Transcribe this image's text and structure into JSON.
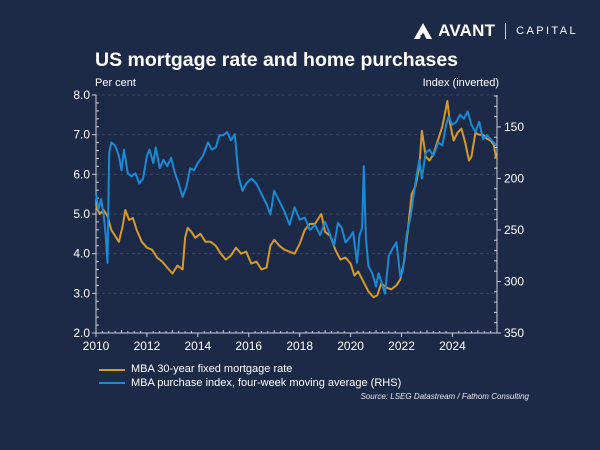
{
  "brand": {
    "name": "AVANT",
    "subtitle": "CAPITAL",
    "logo_icon": "avant-mountain-icon"
  },
  "header": {
    "title": "US mortgage rate and home purchases",
    "left_axis_label": "Per cent",
    "right_axis_label": "Index (inverted)"
  },
  "source": "Source: LSEG Datastream / Fathom Consulting",
  "colors": {
    "background": "#1d2a47",
    "mortgage": "#d69a2d",
    "purchase": "#1a8ad4",
    "grid": "#3a4866",
    "axis": "#c9cfdb"
  },
  "chart_data": {
    "type": "line",
    "title": "US mortgage rate and home purchases",
    "xlabel": "",
    "ylabel": "Per cent",
    "y2label": "Index (inverted)",
    "xlim": [
      2010,
      2025.75
    ],
    "ylim": [
      2.0,
      8.0
    ],
    "y2lim": [
      350,
      119
    ],
    "y2_inverted": true,
    "x_ticks": [
      2010,
      2012,
      2014,
      2016,
      2018,
      2020,
      2022,
      2024
    ],
    "x_tick_labels": [
      "2010",
      "2012",
      "2014",
      "2016",
      "2018",
      "2020",
      "2022",
      "2024"
    ],
    "y_ticks": [
      2.0,
      3.0,
      4.0,
      5.0,
      6.0,
      7.0,
      8.0
    ],
    "y_tick_labels": [
      "2.0",
      "3.0",
      "4.0",
      "5.0",
      "6.0",
      "7.0",
      "8.0"
    ],
    "y2_ticks": [
      150,
      200,
      250,
      300,
      350
    ],
    "y2_tick_labels": [
      "150",
      "200",
      "250",
      "300",
      "350"
    ],
    "grid": true,
    "legend_position": "bottom-left",
    "series": [
      {
        "name": "MBA 30-year fixed mortgage rate",
        "axis": "left",
        "x": [
          2010.0,
          2010.15,
          2010.3,
          2010.45,
          2010.6,
          2010.75,
          2010.9,
          2011.05,
          2011.15,
          2011.3,
          2011.45,
          2011.6,
          2011.8,
          2012.0,
          2012.2,
          2012.4,
          2012.6,
          2012.8,
          2013.0,
          2013.2,
          2013.4,
          2013.5,
          2013.6,
          2013.75,
          2013.9,
          2014.1,
          2014.3,
          2014.5,
          2014.7,
          2014.9,
          2015.1,
          2015.3,
          2015.5,
          2015.7,
          2015.9,
          2016.1,
          2016.3,
          2016.5,
          2016.7,
          2016.85,
          2017.0,
          2017.2,
          2017.4,
          2017.6,
          2017.8,
          2018.0,
          2018.2,
          2018.4,
          2018.6,
          2018.85,
          2019.0,
          2019.2,
          2019.4,
          2019.6,
          2019.8,
          2020.0,
          2020.15,
          2020.3,
          2020.5,
          2020.7,
          2020.9,
          2021.05,
          2021.2,
          2021.4,
          2021.6,
          2021.8,
          2021.95,
          2022.1,
          2022.25,
          2022.4,
          2022.55,
          2022.7,
          2022.8,
          2022.95,
          2023.1,
          2023.25,
          2023.4,
          2023.6,
          2023.8,
          2023.9,
          2024.05,
          2024.2,
          2024.35,
          2024.5,
          2024.65,
          2024.75,
          2024.9,
          2025.05,
          2025.2,
          2025.35,
          2025.5,
          2025.62,
          2025.72
        ],
        "values": [
          5.2,
          5.0,
          5.1,
          4.95,
          4.6,
          4.45,
          4.3,
          4.7,
          5.1,
          4.85,
          4.9,
          4.6,
          4.3,
          4.15,
          4.1,
          3.9,
          3.8,
          3.65,
          3.5,
          3.7,
          3.6,
          4.4,
          4.65,
          4.55,
          4.4,
          4.5,
          4.3,
          4.3,
          4.2,
          4.0,
          3.85,
          3.95,
          4.15,
          4.0,
          4.05,
          3.75,
          3.8,
          3.6,
          3.65,
          4.2,
          4.35,
          4.2,
          4.1,
          4.05,
          4.0,
          4.25,
          4.6,
          4.75,
          4.75,
          5.0,
          4.55,
          4.45,
          4.1,
          3.85,
          3.9,
          3.75,
          3.45,
          3.55,
          3.3,
          3.05,
          2.9,
          2.95,
          3.25,
          3.15,
          3.1,
          3.2,
          3.35,
          3.8,
          4.6,
          5.5,
          5.7,
          6.2,
          7.1,
          6.45,
          6.35,
          6.5,
          6.8,
          7.2,
          7.85,
          7.3,
          6.85,
          7.05,
          7.15,
          6.8,
          6.35,
          6.45,
          7.05,
          7.0,
          7.0,
          6.9,
          6.85,
          6.75,
          6.4
        ]
      },
      {
        "name": "MBA purchase index, four-week moving average (RHS)",
        "axis": "right",
        "x": [
          2010.0,
          2010.1,
          2010.2,
          2010.3,
          2010.38,
          2010.45,
          2010.52,
          2010.6,
          2010.75,
          2010.9,
          2011.0,
          2011.1,
          2011.25,
          2011.4,
          2011.55,
          2011.7,
          2011.85,
          2012.0,
          2012.1,
          2012.25,
          2012.35,
          2012.5,
          2012.65,
          2012.8,
          2012.95,
          2013.1,
          2013.25,
          2013.4,
          2013.55,
          2013.7,
          2013.85,
          2014.0,
          2014.2,
          2014.4,
          2014.55,
          2014.7,
          2014.85,
          2015.0,
          2015.15,
          2015.3,
          2015.45,
          2015.6,
          2015.75,
          2015.9,
          2016.1,
          2016.3,
          2016.5,
          2016.7,
          2016.85,
          2017.0,
          2017.2,
          2017.4,
          2017.6,
          2017.8,
          2018.0,
          2018.2,
          2018.4,
          2018.6,
          2018.8,
          2019.0,
          2019.2,
          2019.35,
          2019.5,
          2019.65,
          2019.8,
          2019.95,
          2020.1,
          2020.25,
          2020.35,
          2020.45,
          2020.52,
          2020.6,
          2020.7,
          2020.85,
          2021.0,
          2021.1,
          2021.2,
          2021.35,
          2021.5,
          2021.65,
          2021.8,
          2021.95,
          2022.05,
          2022.2,
          2022.35,
          2022.5,
          2022.6,
          2022.7,
          2022.8,
          2022.95,
          2023.1,
          2023.25,
          2023.45,
          2023.6,
          2023.75,
          2023.85,
          2024.0,
          2024.15,
          2024.3,
          2024.45,
          2024.6,
          2024.75,
          2024.9,
          2025.05,
          2025.2,
          2025.35,
          2025.5,
          2025.62,
          2025.72
        ],
        "values": [
          215,
          230,
          220,
          235,
          255,
          282,
          175,
          165,
          168,
          178,
          192,
          172,
          195,
          198,
          195,
          205,
          200,
          178,
          172,
          185,
          170,
          190,
          182,
          188,
          180,
          195,
          205,
          218,
          208,
          190,
          192,
          185,
          178,
          165,
          172,
          170,
          158,
          158,
          155,
          163,
          157,
          198,
          212,
          205,
          200,
          205,
          215,
          225,
          235,
          212,
          222,
          232,
          245,
          228,
          240,
          238,
          250,
          245,
          255,
          242,
          255,
          265,
          243,
          248,
          262,
          258,
          252,
          282,
          255,
          248,
          188,
          258,
          285,
          292,
          305,
          292,
          300,
          312,
          275,
          268,
          262,
          295,
          290,
          255,
          238,
          212,
          196,
          182,
          200,
          175,
          172,
          178,
          165,
          168,
          148,
          140,
          148,
          145,
          138,
          142,
          135,
          148,
          155,
          145,
          162,
          158,
          162,
          165,
          168
        ]
      }
    ]
  }
}
